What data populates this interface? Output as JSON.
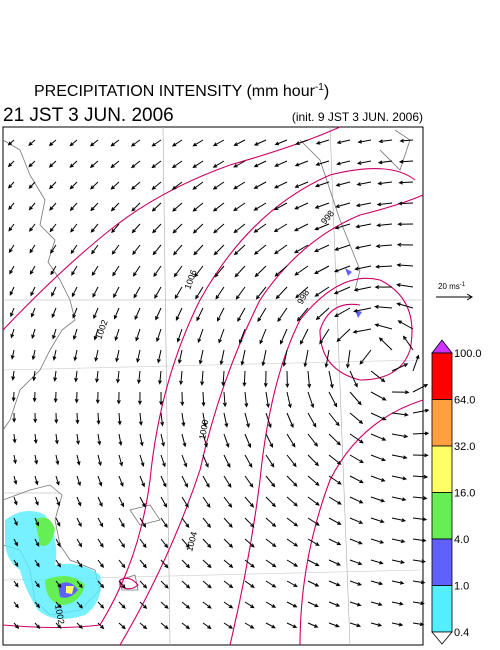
{
  "header": {
    "title_main": "PRECIPITATION INTENSITY (mm hour",
    "title_sup": "-1",
    "title_end": ")",
    "valid_time": "21 JST 3 JUN. 2006",
    "init_time": "(init. 9 JST 3 JUN. 2006)"
  },
  "wind_scale": {
    "label_main": "20 ms",
    "label_sup": "-1"
  },
  "colorbar": {
    "levels": [
      {
        "label": "100.0",
        "color": "#ff0000"
      },
      {
        "label": "64.0",
        "color": "#ffa040"
      },
      {
        "label": "32.0",
        "color": "#ffff66"
      },
      {
        "label": "16.0",
        "color": "#66ee55"
      },
      {
        "label": "4.0",
        "color": "#6060ff"
      },
      {
        "label": "1.0",
        "color": "#55eeff"
      },
      {
        "label": "0.4",
        "color": "#ffffff"
      }
    ],
    "top_color": "#cc33ff"
  },
  "contours": {
    "labels": [
      "1002",
      "1000",
      "998",
      "1004",
      "1006",
      "998",
      "1002"
    ]
  }
}
